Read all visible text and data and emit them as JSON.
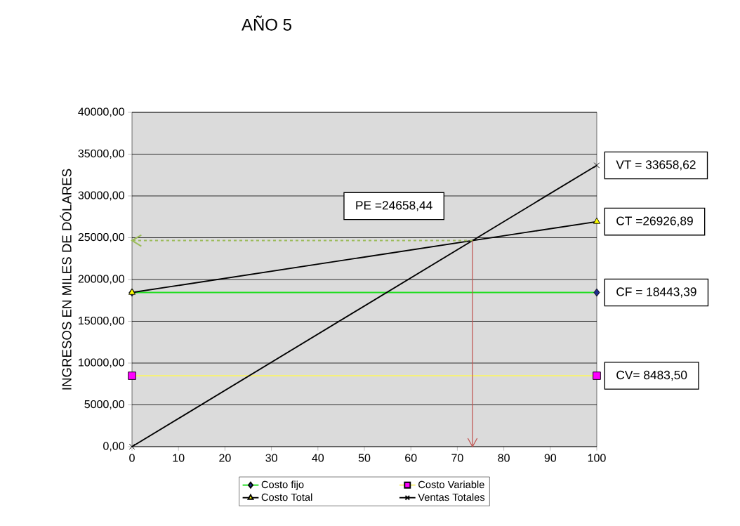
{
  "chart_data": {
    "type": "line",
    "title": "AÑO 5",
    "ylabel": "INGRESOS  EN MILES DE DÓLARES",
    "x": [
      0,
      100
    ],
    "series": [
      {
        "name": "Costo fijo",
        "color": "#22dd22",
        "colors": [
          "#1f2f8f",
          "#1f2f8f"
        ],
        "marker": "diamond",
        "values": [
          18443.39,
          18443.39
        ],
        "value_labels": [
          null,
          "CF = 18443,39"
        ]
      },
      {
        "name": "Costo Variable",
        "color": "#f5f07a",
        "colors": [
          "#ff00ff",
          "#ff00ff"
        ],
        "marker": "square",
        "values": [
          8483.5,
          8483.5
        ],
        "value_labels": [
          null,
          "CV= 8483,50"
        ]
      },
      {
        "name": "Costo Total",
        "color": "#000000",
        "colors": [
          "#ffff00",
          "#ffff00"
        ],
        "marker": "triangle",
        "values": [
          18443.39,
          26926.89
        ],
        "value_labels": [
          null,
          "CT =26926,89"
        ]
      },
      {
        "name": "Ventas Totales",
        "color": "#000000",
        "colors": [
          "#000000",
          "#000000"
        ],
        "marker": "cross",
        "values": [
          0,
          33658.62
        ],
        "value_labels": [
          null,
          "VT = 33658,62"
        ]
      }
    ],
    "xlim": [
      0,
      100
    ],
    "xticks": [
      0,
      10,
      20,
      30,
      40,
      50,
      60,
      70,
      80,
      90,
      100
    ],
    "ylim": [
      0,
      40000
    ],
    "yticks": [
      {
        "value": 0,
        "label": "0,00"
      },
      {
        "value": 5000,
        "label": "5000,00"
      },
      {
        "value": 10000,
        "label": "10000,00"
      },
      {
        "value": 15000,
        "label": "15000,00"
      },
      {
        "value": 20000,
        "label": "20000,00"
      },
      {
        "value": 25000,
        "label": "25000,00"
      },
      {
        "value": 30000,
        "label": "30000,00"
      },
      {
        "value": 35000,
        "label": "35000,00"
      },
      {
        "value": 40000,
        "label": "40000,00"
      }
    ],
    "grid": "y",
    "legend": "bottom",
    "ref_lines": [
      {
        "axis": "x",
        "value": 73.26,
        "color": "#c0504d",
        "line_style": "solid"
      },
      {
        "axis": "y",
        "value": 24658.44,
        "color": "#9bbb59",
        "line_style": "dashed",
        "label": "PE =24658,44"
      }
    ]
  }
}
